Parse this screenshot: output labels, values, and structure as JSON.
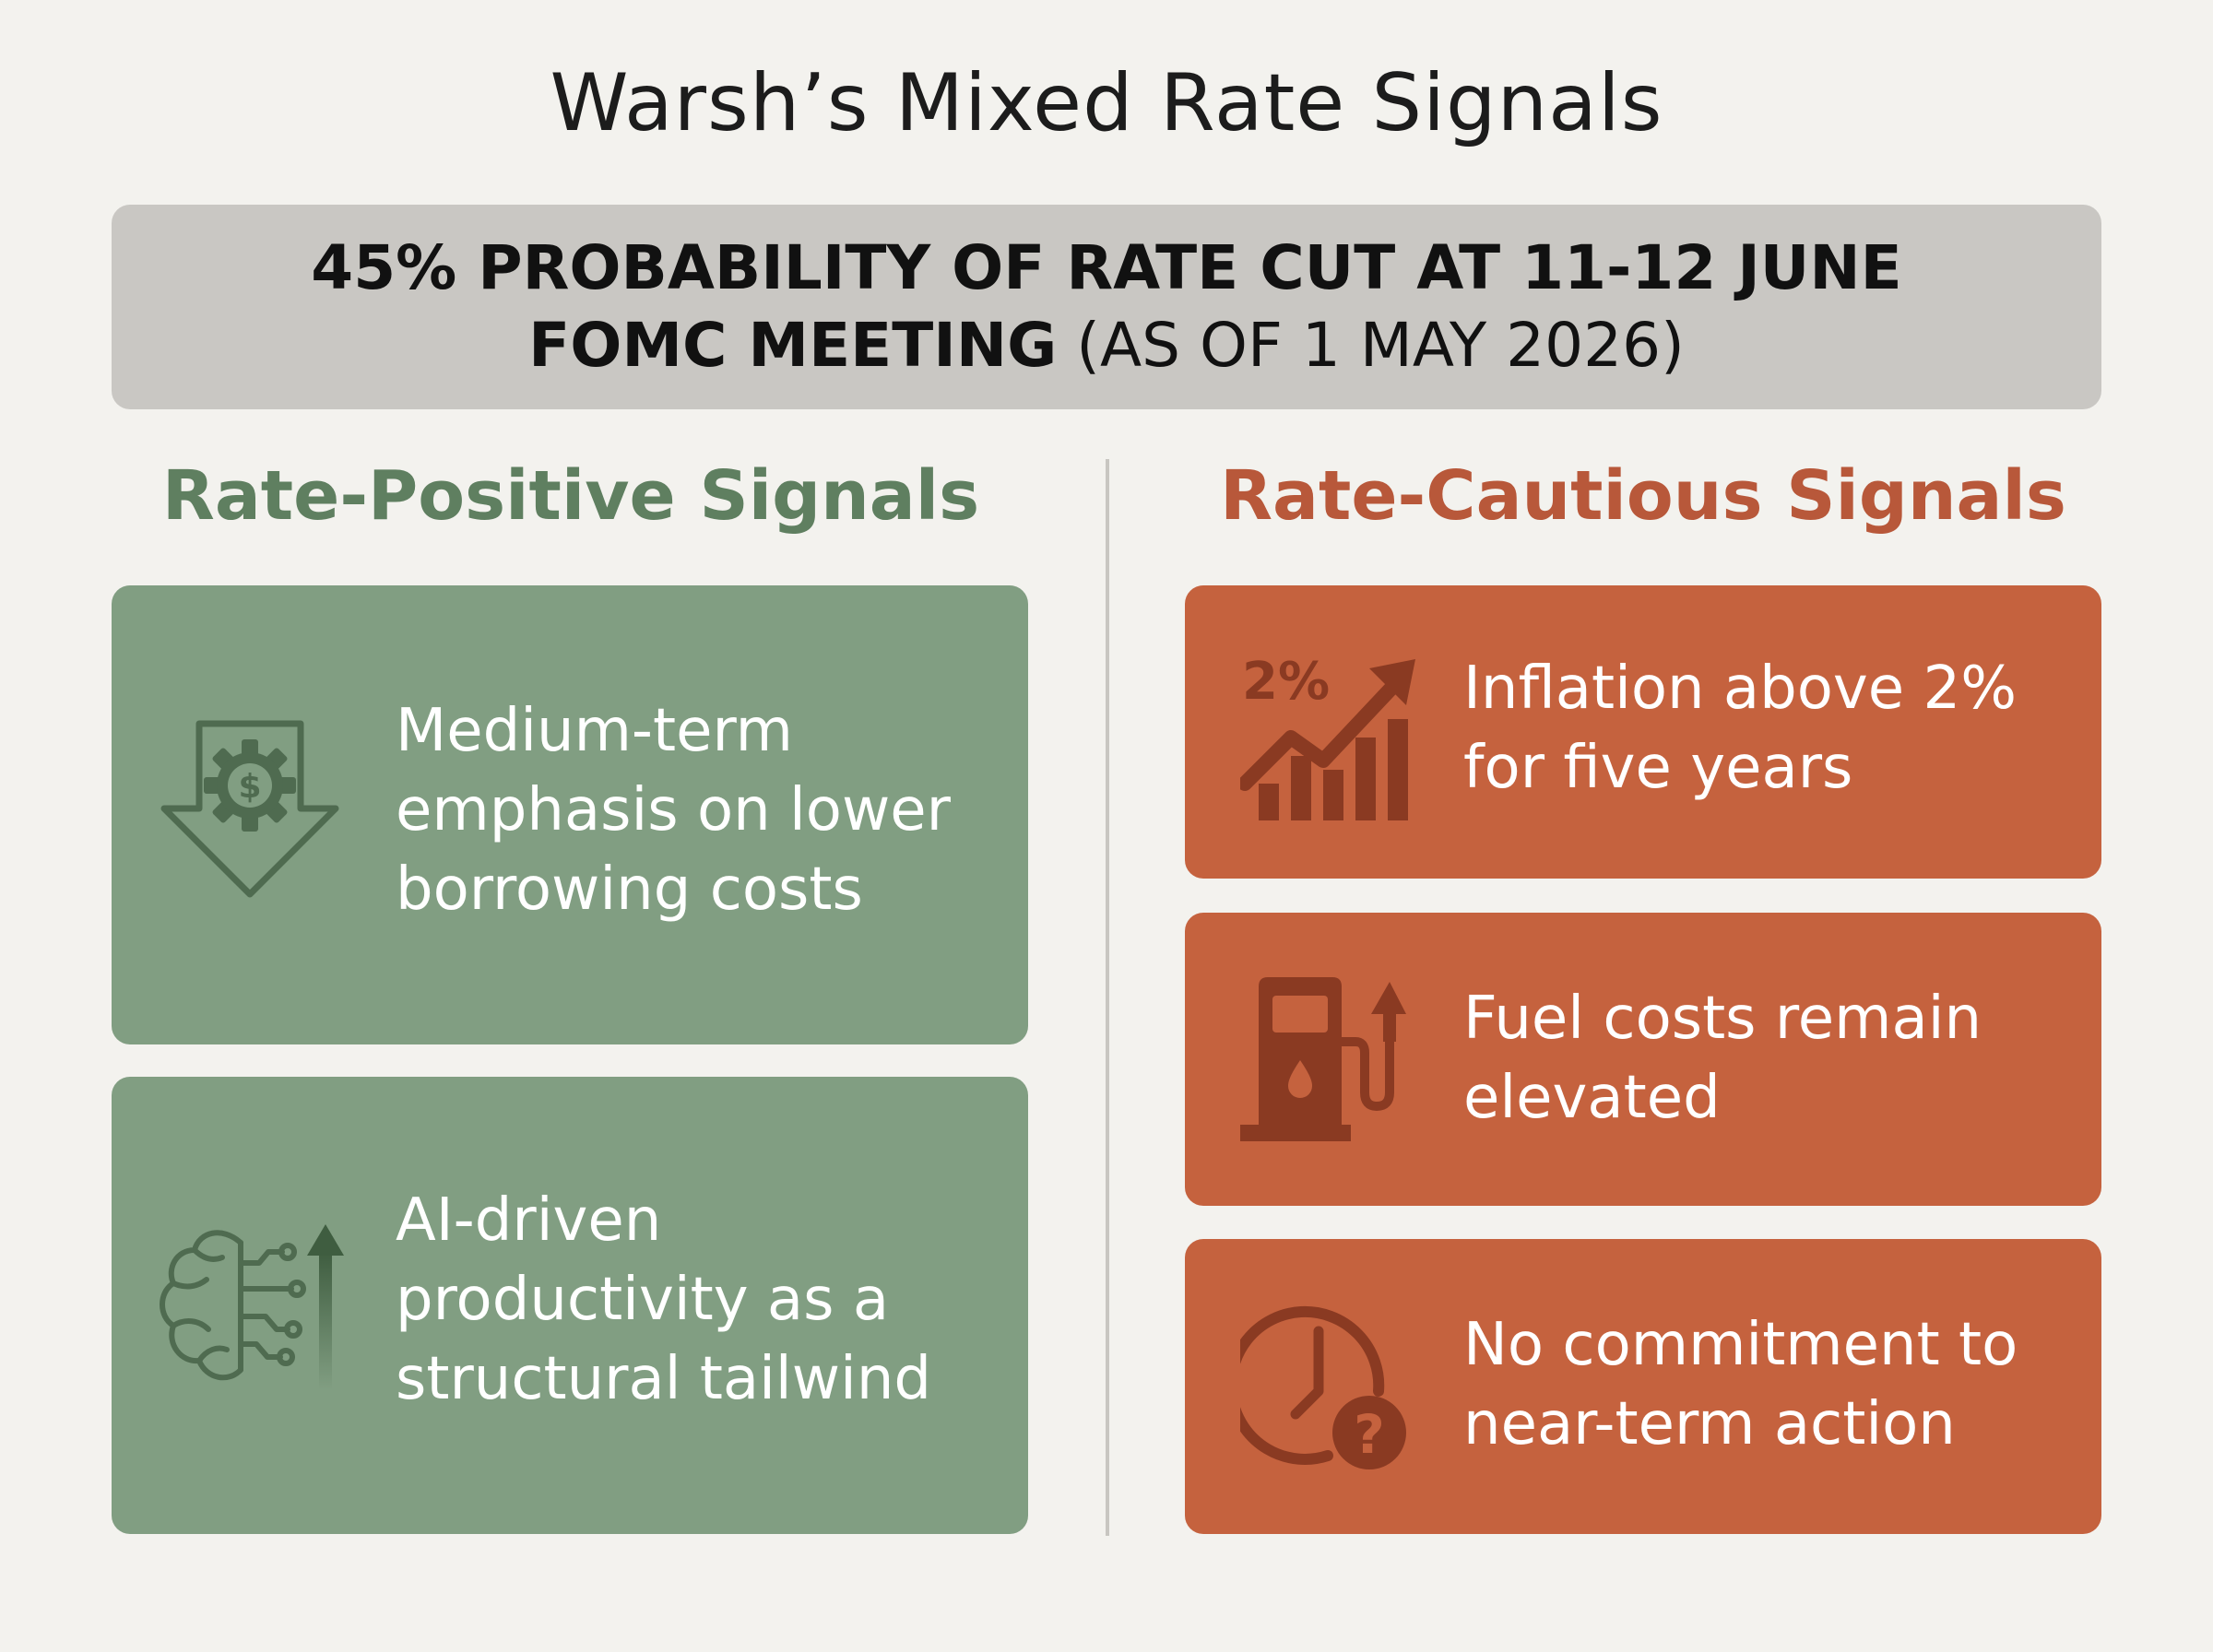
{
  "title": "Warsh’s Mixed Rate Signals",
  "banner": {
    "line1": "45% PROBABILITY OF RATE CUT AT 11-12 JUNE",
    "line2_bold": "FOMC MEETING",
    "line2_rest": " (AS OF 1 MAY 2026)"
  },
  "positive": {
    "heading": "Rate-Positive Signals",
    "color": "#819e82",
    "items": [
      {
        "icon": "dollar-gear-down-arrow-icon",
        "lines": [
          "Medium-term",
          "emphasis on lower",
          "borrowing costs"
        ]
      },
      {
        "icon": "ai-brain-up-arrow-icon",
        "lines": [
          "AI-driven",
          "productivity as a",
          "structural tailwind"
        ]
      }
    ]
  },
  "cautious": {
    "heading": "Rate-Cautious Signals",
    "color": "#c5623e",
    "items": [
      {
        "icon": "inflation-chart-icon",
        "icon_label": "2%",
        "lines": [
          "Inflation above 2%",
          "for five years"
        ]
      },
      {
        "icon": "fuel-pump-up-arrow-icon",
        "lines": [
          "Fuel costs remain",
          "elevated"
        ]
      },
      {
        "icon": "clock-question-icon",
        "icon_label": "?",
        "lines": [
          "No commitment to",
          "near-term action"
        ]
      }
    ]
  }
}
